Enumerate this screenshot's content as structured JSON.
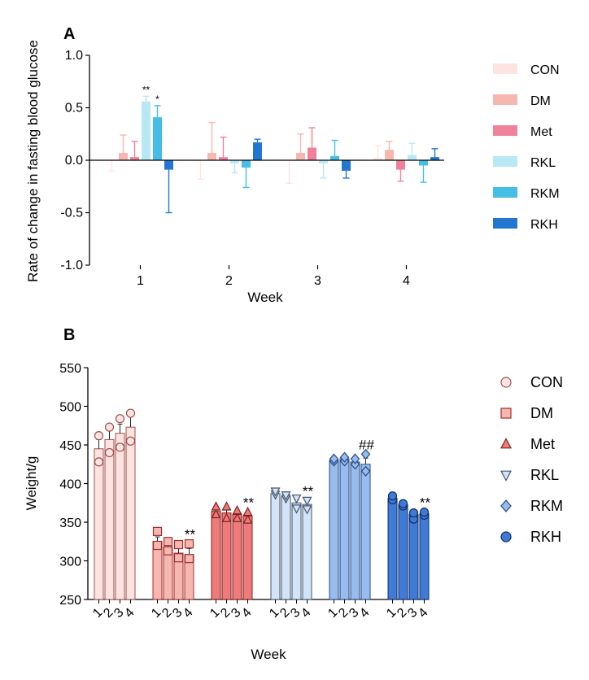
{
  "chart_data": [
    {
      "panel": "A",
      "type": "bar",
      "xlabel": "Week",
      "ylabel": "Rate of change in fasting blood glucose",
      "ylim": [
        -1.0,
        1.0
      ],
      "yticks": [
        "-1.0",
        "-0.5",
        "0.0",
        "0.5",
        "1.0"
      ],
      "categories": [
        "1",
        "2",
        "3",
        "4"
      ],
      "legend_position": "right",
      "series": [
        {
          "name": "CON",
          "color": "#fde4e0",
          "values": [
            0.0,
            0.0,
            0.0,
            0.02
          ],
          "errors": [
            0.1,
            0.18,
            0.22,
            0.12
          ],
          "error_dir": [
            -1,
            -1,
            -1,
            1
          ],
          "annotations": [
            "",
            "",
            "",
            ""
          ]
        },
        {
          "name": "DM",
          "color": "#f6b7b0",
          "values": [
            0.07,
            0.07,
            0.07,
            0.1
          ],
          "errors": [
            0.17,
            0.29,
            0.18,
            0.08
          ],
          "error_dir": [
            1,
            1,
            1,
            1
          ],
          "annotations": [
            "",
            "",
            "",
            ""
          ]
        },
        {
          "name": "Met",
          "color": "#f0819a",
          "values": [
            0.03,
            0.03,
            0.12,
            -0.09
          ],
          "errors": [
            0.15,
            0.19,
            0.19,
            0.11
          ],
          "error_dir": [
            1,
            1,
            1,
            -1
          ],
          "annotations": [
            "",
            "",
            "",
            ""
          ]
        },
        {
          "name": "RKL",
          "color": "#b8e8f4",
          "values": [
            0.56,
            -0.03,
            -0.03,
            0.05
          ],
          "errors": [
            0.05,
            0.09,
            0.14,
            0.11
          ],
          "error_dir": [
            1,
            -1,
            -1,
            1
          ],
          "annotations": [
            "**",
            "",
            "",
            ""
          ]
        },
        {
          "name": "RKM",
          "color": "#45bde4",
          "values": [
            0.41,
            -0.07,
            0.04,
            -0.05
          ],
          "errors": [
            0.11,
            0.19,
            0.15,
            0.16
          ],
          "error_dir": [
            1,
            -1,
            1,
            -1
          ],
          "annotations": [
            "*",
            "",
            "",
            ""
          ]
        },
        {
          "name": "RKH",
          "color": "#2376cf",
          "values": [
            -0.09,
            0.17,
            -0.1,
            0.03
          ],
          "errors": [
            0.41,
            0.03,
            0.07,
            0.08
          ],
          "error_dir": [
            -1,
            1,
            -1,
            1
          ],
          "annotations": [
            "",
            "",
            "",
            ""
          ]
        }
      ]
    },
    {
      "panel": "B",
      "type": "bar",
      "xlabel": "Week",
      "ylabel": "Weight/g",
      "ylim": [
        250,
        550
      ],
      "yticks": [
        "250",
        "300",
        "350",
        "400",
        "450",
        "500",
        "550"
      ],
      "categories": [
        "1",
        "2",
        "3",
        "4"
      ],
      "legend_position": "right",
      "series": [
        {
          "name": "CON",
          "marker": "circle",
          "color": "#fde4e0",
          "stroke": "#a05050",
          "values": [
            445,
            457,
            465,
            473
          ],
          "errors": [
            12,
            12,
            12,
            14
          ],
          "points": [
            [
              428,
              462
            ],
            [
              440,
              473
            ],
            [
              447,
              484
            ],
            [
              455,
              491
            ]
          ],
          "annotation": ""
        },
        {
          "name": "DM",
          "marker": "square",
          "color": "#f6b7b0",
          "stroke": "#a03030",
          "values": [
            325,
            318,
            310,
            308
          ],
          "errors": [
            6,
            7,
            7,
            8
          ],
          "points": [
            [
              320,
              338
            ],
            [
              313,
              325
            ],
            [
              304,
              321
            ],
            [
              303,
              322
            ]
          ],
          "annotation": "**"
        },
        {
          "name": "Met",
          "marker": "triangle-up",
          "color": "#ee7a7a",
          "stroke": "#802020",
          "values": [
            364,
            362,
            360,
            358
          ],
          "errors": [
            4,
            6,
            5,
            4
          ],
          "points": [
            [
              360,
              370
            ],
            [
              355,
              370
            ],
            [
              355,
              365
            ],
            [
              353,
              363
            ]
          ],
          "annotation": "**"
        },
        {
          "name": "RKL",
          "marker": "triangle-down",
          "color": "#d4e4f8",
          "stroke": "#44556a",
          "values": [
            387,
            383,
            375,
            373
          ],
          "errors": [
            2,
            2,
            4,
            4
          ],
          "points": [
            [
              386,
              390
            ],
            [
              381,
              385
            ],
            [
              368,
              381
            ],
            [
              367,
              378
            ]
          ],
          "annotation": "**"
        },
        {
          "name": "RKM",
          "marker": "diamond",
          "color": "#97bdef",
          "stroke": "#2a4a80",
          "values": [
            430,
            432,
            428,
            425
          ],
          "errors": [
            2,
            3,
            4,
            8
          ],
          "points": [
            [
              429,
              432
            ],
            [
              429,
              434
            ],
            [
              425,
              432
            ],
            [
              416,
              438
            ]
          ],
          "annotation": "##"
        },
        {
          "name": "RKH",
          "marker": "circle",
          "color": "#3e7ad6",
          "stroke": "#0f2f66",
          "values": [
            381,
            373,
            360,
            361
          ],
          "errors": [
            3,
            2,
            5,
            2
          ],
          "points": [
            [
              379,
              384
            ],
            [
              371,
              374
            ],
            [
              354,
              362
            ],
            [
              359,
              363
            ]
          ],
          "annotation": "**"
        }
      ]
    }
  ]
}
